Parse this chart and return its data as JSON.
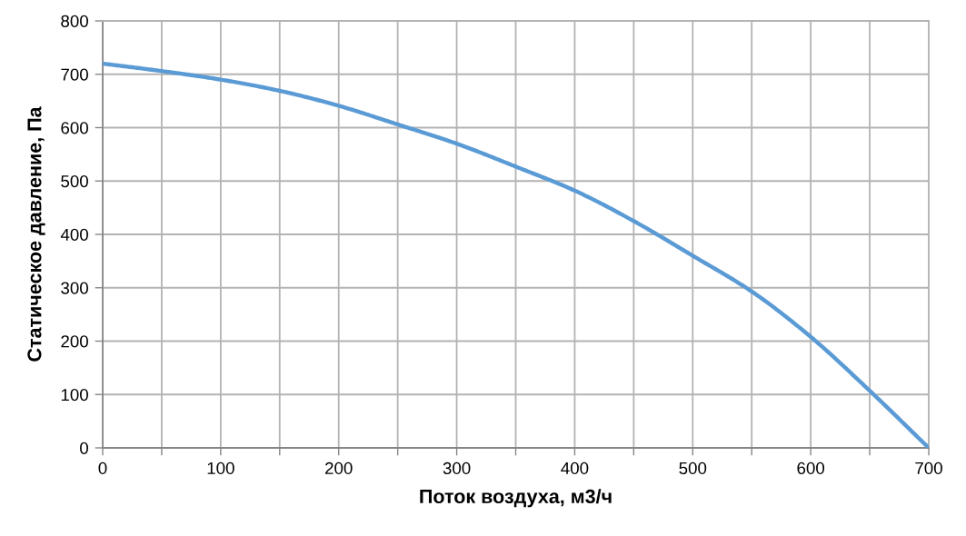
{
  "chart_data": {
    "type": "line",
    "xlabel": "Поток воздуха, м3/ч",
    "ylabel": "Статическое давление, Па",
    "x": [
      0,
      50,
      100,
      150,
      200,
      250,
      300,
      350,
      400,
      450,
      500,
      550,
      600,
      650,
      700
    ],
    "series": [
      {
        "color": "#5b9bd5",
        "values": [
          720,
          706,
          690,
          669,
          641,
          606,
          570,
          527,
          482,
          425,
          360,
          293,
          208,
          107,
          0
        ]
      }
    ],
    "xlim": [
      0,
      700
    ],
    "ylim": [
      0,
      800
    ],
    "xticks": [
      0,
      {
        "value": 50,
        "label": null
      },
      100,
      {
        "value": 150,
        "label": null
      },
      200,
      {
        "value": 250,
        "label": null
      },
      300,
      {
        "value": 350,
        "label": null
      },
      400,
      {
        "value": 450,
        "label": null
      },
      500,
      {
        "value": 550,
        "label": null
      },
      600,
      {
        "value": 650,
        "label": null
      },
      700
    ],
    "yticks": [
      0,
      100,
      200,
      300,
      400,
      500,
      600,
      700,
      800
    ],
    "grid": true
  }
}
